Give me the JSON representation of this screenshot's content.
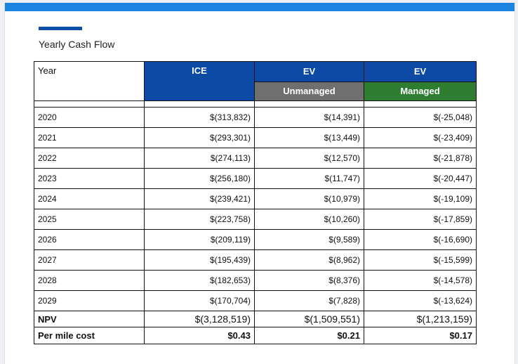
{
  "section_title": "Yearly Cash Flow",
  "colors": {
    "top_bar": "#1b84e0",
    "ice_header": "#0d4aa6",
    "unmanaged": "#6f6f6f",
    "managed": "#2f7d32"
  },
  "table": {
    "headers": {
      "year": "Year",
      "ice": "ICE",
      "ev_unmanaged_top": "EV",
      "ev_unmanaged_sub": "Unmanaged",
      "ev_managed_top": "EV",
      "ev_managed_sub": "Managed"
    },
    "rows": [
      {
        "year": "2020",
        "ice": "$(313,832)",
        "ev_unmanaged": "$(14,391)",
        "ev_managed": "$(-25,048)"
      },
      {
        "year": "2021",
        "ice": "$(293,301)",
        "ev_unmanaged": "$(13,449)",
        "ev_managed": "$(-23,409)"
      },
      {
        "year": "2022",
        "ice": "$(274,113)",
        "ev_unmanaged": "$(12,570)",
        "ev_managed": "$(-21,878)"
      },
      {
        "year": "2023",
        "ice": "$(256,180)",
        "ev_unmanaged": "$(11,747)",
        "ev_managed": "$(-20,447)"
      },
      {
        "year": "2024",
        "ice": "$(239,421)",
        "ev_unmanaged": "$(10,979)",
        "ev_managed": "$(-19,109)"
      },
      {
        "year": "2025",
        "ice": "$(223,758)",
        "ev_unmanaged": "$(10,260)",
        "ev_managed": "$(-17,859)"
      },
      {
        "year": "2026",
        "ice": "$(209,119)",
        "ev_unmanaged": "$(9,589)",
        "ev_managed": "$(-16,690)"
      },
      {
        "year": "2027",
        "ice": "$(195,439)",
        "ev_unmanaged": "$(8,962)",
        "ev_managed": "$(-15,599)"
      },
      {
        "year": "2028",
        "ice": "$(182,653)",
        "ev_unmanaged": "$(8,376)",
        "ev_managed": "$(-14,578)"
      },
      {
        "year": "2029",
        "ice": "$(170,704)",
        "ev_unmanaged": "$(7,828)",
        "ev_managed": "$(-13,624)"
      }
    ],
    "npv": {
      "label": "NPV",
      "ice": "$(3,128,519)",
      "ev_unmanaged": "$(1,509,551)",
      "ev_managed": "$(1,213,159)"
    },
    "per_mile": {
      "label": "Per mile cost",
      "ice": "$0.43",
      "ev_unmanaged": "$0.21",
      "ev_managed": "$0.17"
    }
  }
}
